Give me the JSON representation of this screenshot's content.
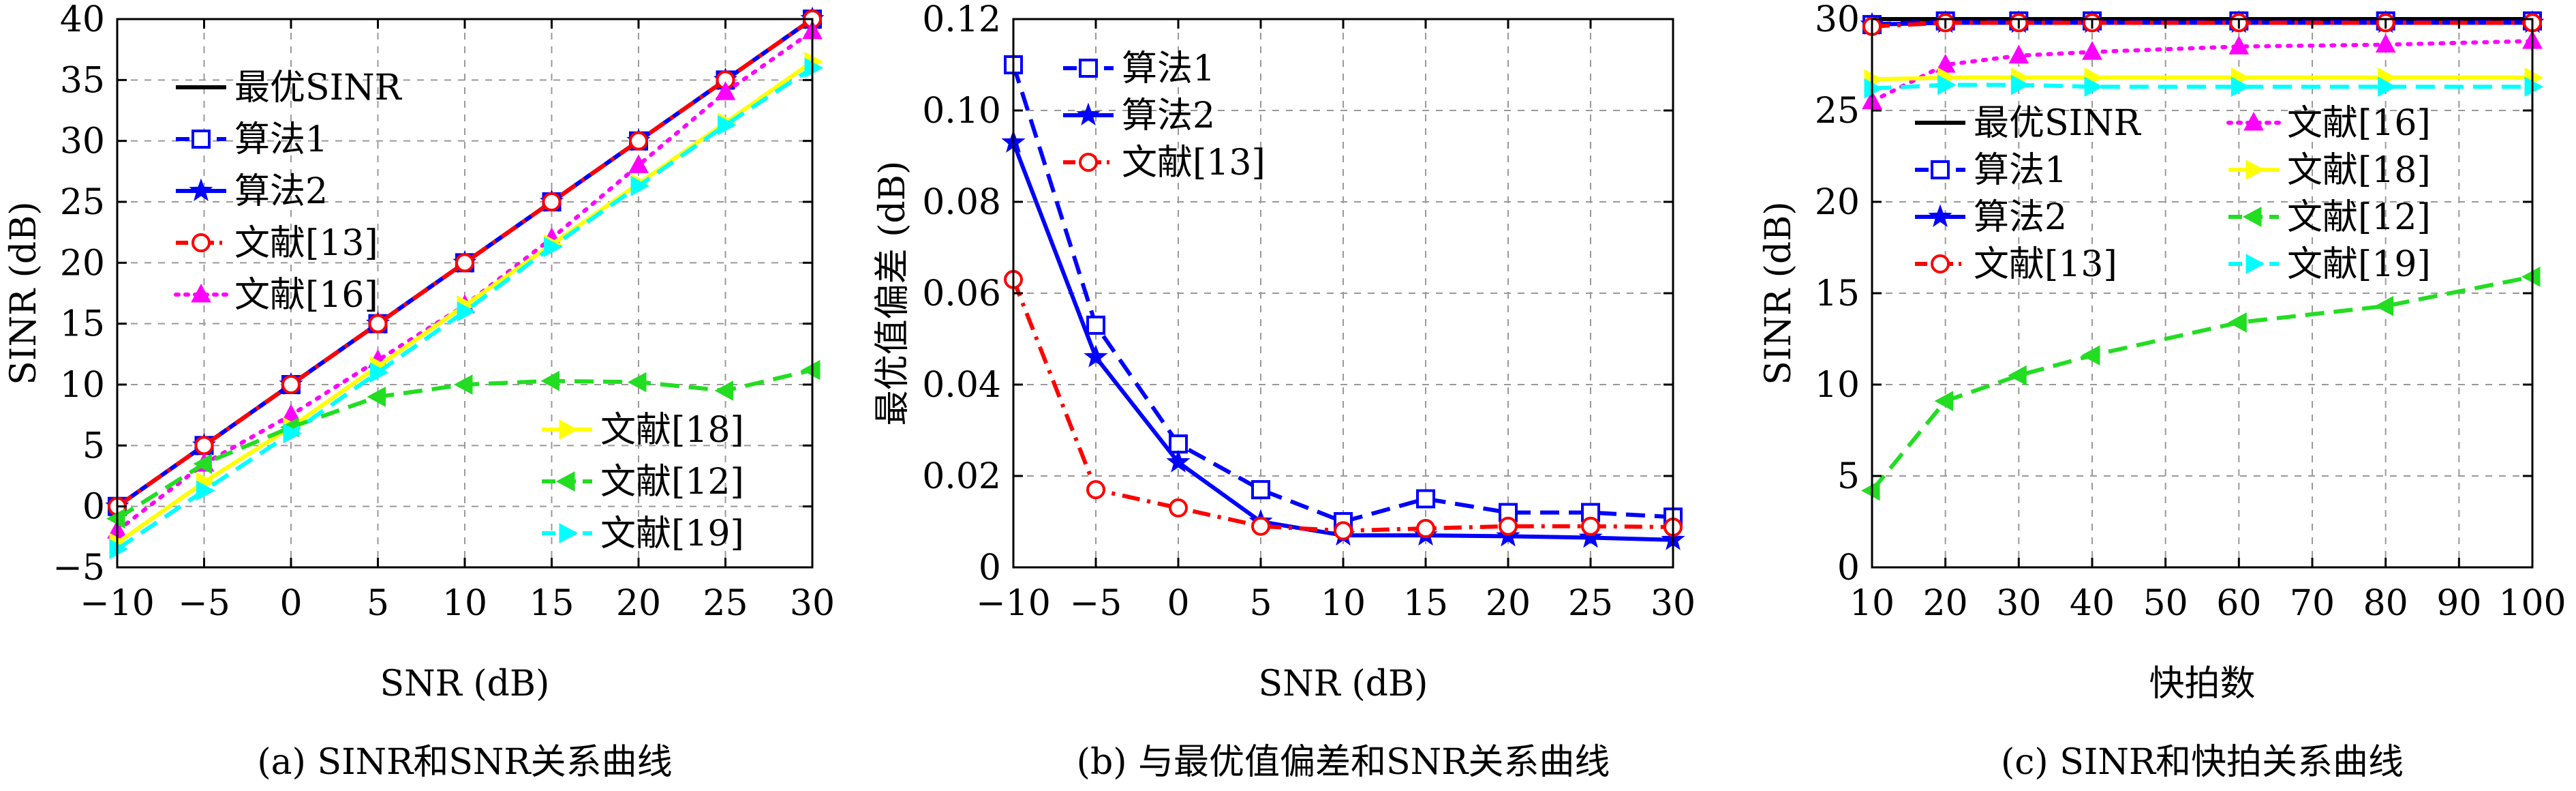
{
  "chart_data": [
    {
      "type": "line",
      "caption": "(a) SINR和SNR关系曲线",
      "xlabel": "SNR (dB)",
      "ylabel": "SINR (dB)",
      "xlim": [
        -10,
        30
      ],
      "ylim": [
        -5,
        40
      ],
      "xticks": [
        -10,
        -5,
        0,
        5,
        10,
        15,
        20,
        25,
        30
      ],
      "yticks": [
        -5,
        0,
        5,
        10,
        15,
        20,
        25,
        30,
        35,
        40
      ],
      "xtick_labels": [
        "−10",
        "−5",
        "0",
        "5",
        "10",
        "15",
        "20",
        "25",
        "30"
      ],
      "ytick_labels": [
        "−5",
        "0",
        "5",
        "10",
        "15",
        "20",
        "25",
        "30",
        "35",
        "40"
      ],
      "grid": true,
      "legend_groups": [
        {
          "position": "top-left",
          "series": [
            0,
            1,
            2,
            3,
            4
          ]
        },
        {
          "position": "bottom-right",
          "series": [
            5,
            6,
            7
          ]
        }
      ],
      "x": [
        -10,
        -5,
        0,
        5,
        10,
        15,
        20,
        25,
        30
      ],
      "series": [
        {
          "name": "最优SINR",
          "color": "#000000",
          "dash": "solid",
          "marker": "none",
          "values": [
            0,
            5,
            10,
            15,
            20,
            25,
            30,
            35,
            40
          ]
        },
        {
          "name": "算法1",
          "color": "#0000ff",
          "dash": "dashed",
          "marker": "square",
          "values": [
            0,
            5,
            10,
            15,
            20,
            25,
            30,
            35,
            40
          ]
        },
        {
          "name": "算法2",
          "color": "#0000ff",
          "dash": "solid",
          "marker": "star",
          "values": [
            0,
            5,
            10,
            15,
            20,
            25,
            30,
            35,
            40
          ]
        },
        {
          "name": "文献[13]",
          "color": "#ff0000",
          "dash": "dashdot",
          "marker": "circle",
          "values": [
            0,
            5,
            10,
            15,
            20,
            25,
            30,
            35,
            40
          ]
        },
        {
          "name": "文献[16]",
          "color": "#ff00ff",
          "dash": "dotted",
          "marker": "triangle-up",
          "values": [
            -2,
            3.5,
            7.5,
            12,
            16.5,
            22,
            28,
            34,
            39
          ]
        },
        {
          "name": "文献[18]",
          "color": "#ffff00",
          "dash": "solid",
          "marker": "triangle-right",
          "values": [
            -3,
            2,
            6.5,
            11.5,
            16.5,
            21.5,
            26.5,
            31.5,
            36.5
          ]
        },
        {
          "name": "文献[12]",
          "color": "#22dd22",
          "dash": "dashed",
          "marker": "triangle-left",
          "values": [
            -1,
            3.5,
            6.5,
            9,
            10,
            10.3,
            10.2,
            9.5,
            11.2
          ]
        },
        {
          "name": "文献[19]",
          "color": "#00ffff",
          "dash": "dashed",
          "marker": "triangle-right",
          "values": [
            -3.5,
            1.3,
            6,
            11,
            16,
            21.3,
            26.3,
            31.3,
            36
          ]
        }
      ]
    },
    {
      "type": "line",
      "caption": "(b) 与最优值偏差和SNR关系曲线",
      "xlabel": "SNR (dB)",
      "ylabel": "最优值偏差 (dB)",
      "xlim": [
        -10,
        30
      ],
      "ylim": [
        0,
        0.12
      ],
      "xticks": [
        -10,
        -5,
        0,
        5,
        10,
        15,
        20,
        25,
        30
      ],
      "yticks": [
        0,
        0.02,
        0.04,
        0.06,
        0.08,
        0.1,
        0.12
      ],
      "xtick_labels": [
        "−10",
        "−5",
        "0",
        "5",
        "10",
        "15",
        "20",
        "25",
        "30"
      ],
      "ytick_labels": [
        "0",
        "0.02",
        "0.04",
        "0.06",
        "0.08",
        "0.10",
        "0.12"
      ],
      "grid": true,
      "legend_groups": [
        {
          "position": "top-left",
          "series": [
            0,
            1,
            2
          ]
        }
      ],
      "x": [
        -10,
        -5,
        0,
        5,
        10,
        15,
        20,
        25,
        30
      ],
      "series": [
        {
          "name": "算法1",
          "color": "#0000ff",
          "dash": "dashed",
          "marker": "square",
          "values": [
            0.11,
            0.053,
            0.027,
            0.017,
            0.01,
            0.015,
            0.012,
            0.012,
            0.011
          ]
        },
        {
          "name": "算法2",
          "color": "#0000ff",
          "dash": "solid",
          "marker": "star",
          "values": [
            0.093,
            0.046,
            0.023,
            0.01,
            0.007,
            0.007,
            0.0068,
            0.0065,
            0.006
          ]
        },
        {
          "name": "文献[13]",
          "color": "#ff0000",
          "dash": "dashdot",
          "marker": "circle",
          "values": [
            0.063,
            0.017,
            0.013,
            0.009,
            0.008,
            0.0085,
            0.009,
            0.009,
            0.0088
          ]
        }
      ]
    },
    {
      "type": "line",
      "caption": "(c) SINR和快拍关系曲线",
      "xlabel": "快拍数",
      "ylabel": "SINR (dB)",
      "xlim": [
        10,
        100
      ],
      "ylim": [
        0,
        30
      ],
      "xticks": [
        10,
        20,
        30,
        40,
        50,
        60,
        70,
        80,
        90,
        100
      ],
      "yticks": [
        0,
        5,
        10,
        15,
        20,
        25,
        30
      ],
      "xtick_labels": [
        "10",
        "20",
        "30",
        "40",
        "50",
        "60",
        "70",
        "80",
        "90",
        "100"
      ],
      "ytick_labels": [
        "0",
        "5",
        "10",
        "15",
        "20",
        "25",
        "30"
      ],
      "grid": true,
      "legend_groups": [
        {
          "position": "top-left",
          "series": [
            0,
            1,
            2,
            3
          ]
        },
        {
          "position": "top-right",
          "series": [
            4,
            5,
            6,
            7
          ]
        }
      ],
      "x": [
        10,
        20,
        30,
        40,
        60,
        80,
        100
      ],
      "series": [
        {
          "name": "最优SINR",
          "color": "#000000",
          "dash": "solid",
          "marker": "none",
          "values": [
            30,
            30,
            30,
            30,
            30,
            30,
            30
          ]
        },
        {
          "name": "算法1",
          "color": "#0000ff",
          "dash": "dashed",
          "marker": "square",
          "values": [
            29.7,
            29.9,
            29.9,
            29.9,
            29.9,
            29.9,
            29.9
          ]
        },
        {
          "name": "算法2",
          "color": "#0000ff",
          "dash": "solid",
          "marker": "star",
          "values": [
            29.7,
            29.8,
            29.8,
            29.8,
            29.8,
            29.8,
            29.8
          ]
        },
        {
          "name": "文献[13]",
          "color": "#ff0000",
          "dash": "dashdot",
          "marker": "circle",
          "values": [
            29.6,
            29.8,
            29.8,
            29.8,
            29.8,
            29.8,
            29.8
          ]
        },
        {
          "name": "文献[16]",
          "color": "#ff00ff",
          "dash": "dotted",
          "marker": "triangle-up",
          "values": [
            25.5,
            27.5,
            28,
            28.2,
            28.5,
            28.6,
            28.8
          ]
        },
        {
          "name": "文献[18]",
          "color": "#ffff00",
          "dash": "solid",
          "marker": "triangle-right",
          "values": [
            26.7,
            26.8,
            26.8,
            26.8,
            26.8,
            26.8,
            26.8
          ]
        },
        {
          "name": "文献[12]",
          "color": "#22dd22",
          "dash": "dashed",
          "marker": "triangle-left",
          "values": [
            4.2,
            9.1,
            10.5,
            11.6,
            13.4,
            14.3,
            15.9
          ]
        },
        {
          "name": "文献[19]",
          "color": "#00ffff",
          "dash": "dashed",
          "marker": "triangle-right",
          "values": [
            26.2,
            26.4,
            26.4,
            26.3,
            26.3,
            26.3,
            26.3
          ]
        }
      ]
    }
  ]
}
